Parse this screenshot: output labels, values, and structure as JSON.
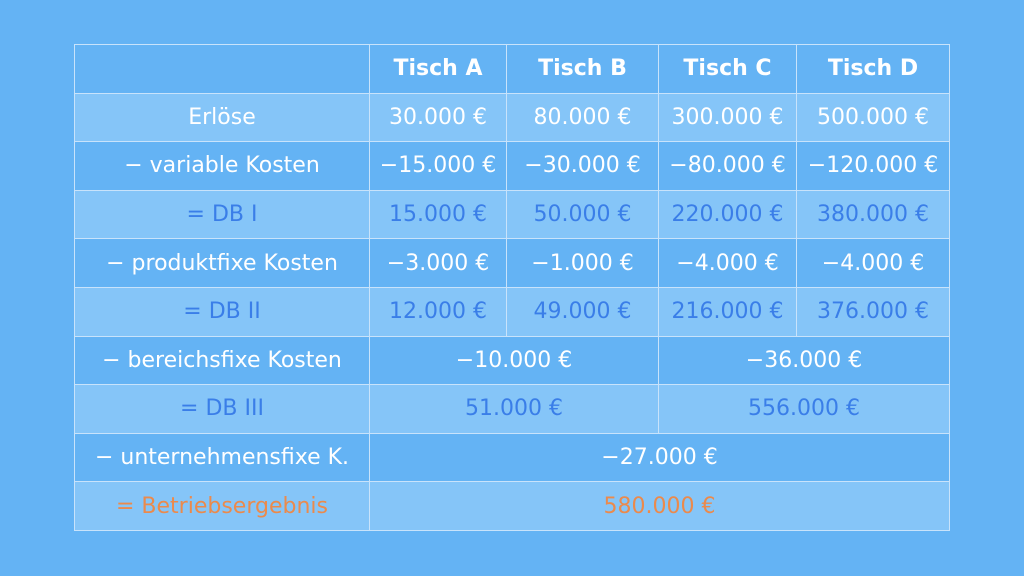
{
  "header": {
    "col1": "Tisch A",
    "col2": "Tisch B",
    "col3": "Tisch C",
    "col4": "Tisch D"
  },
  "rows": {
    "erloese": {
      "label": "Erlöse",
      "a": "30.000 €",
      "b": "80.000 €",
      "c": "300.000 €",
      "d": "500.000 €"
    },
    "variable": {
      "label": "− variable Kosten",
      "a": "−15.000 €",
      "b": "−30.000 €",
      "c": "−80.000 €",
      "d": "−120.000 €"
    },
    "db1": {
      "label": "= DB I",
      "a": "15.000 €",
      "b": "50.000 €",
      "c": "220.000 €",
      "d": "380.000 €"
    },
    "produktfix": {
      "label": "− produktfixe Kosten",
      "a": "−3.000 €",
      "b": "−1.000 €",
      "c": "−4.000 €",
      "d": "−4.000 €"
    },
    "db2": {
      "label": "= DB II",
      "a": "12.000 €",
      "b": "49.000 €",
      "c": "216.000 €",
      "d": "376.000 €"
    },
    "bereichsfix": {
      "label": "− bereichsfixe Kosten",
      "ab": "−10.000 €",
      "cd": "−36.000 €"
    },
    "db3": {
      "label": "= DB III",
      "ab": "51.000 €",
      "cd": "556.000 €"
    },
    "unternehmensfix": {
      "label": "− unternehmensfixe K.",
      "all": "−27.000 €"
    },
    "betriebsergebnis": {
      "label": "= Betriebsergebnis",
      "all": "580.000 €"
    }
  },
  "colors": {
    "background": "#64b3f4",
    "row_light": "#85c5f8",
    "db_text": "#3a7ee8",
    "result_text": "#eb8a4c"
  }
}
